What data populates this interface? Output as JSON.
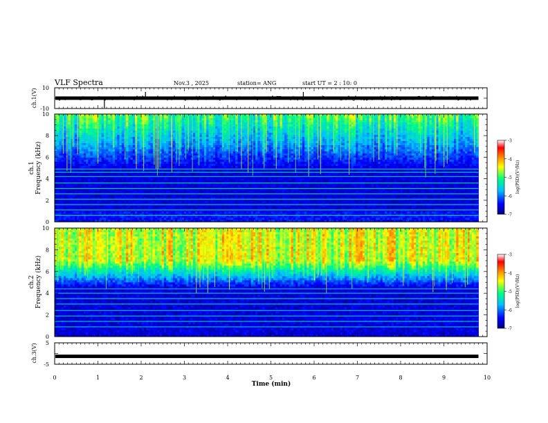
{
  "header": {
    "title": "VLF Spectra",
    "date": "Nov.3 , 2025",
    "station": "station= ANG",
    "start": "start UT = 2 : 10: 0"
  },
  "colors": {
    "spectrogram_background": "#0a1a8c",
    "trace": "#000000",
    "colorbar_stops": [
      "#000080",
      "#0000ff",
      "#00bfff",
      "#00ff80",
      "#ffff00",
      "#ff8000",
      "#ff0000",
      "#ffffff"
    ]
  },
  "chart_data": [
    {
      "type": "line",
      "name": "ch1-waveform",
      "ylabel": "ch.1(V)",
      "ylim": [
        -10,
        10
      ],
      "y_tick_labels": [
        "10",
        "-10"
      ],
      "xlim": [
        0,
        10
      ],
      "trace_end_min": 9.8,
      "baseline_v": 0,
      "spikes": [
        {
          "x": 1.15,
          "y": -9.5
        },
        {
          "x": 2.1,
          "y": 6
        },
        {
          "x": 5.75,
          "y": 6
        },
        {
          "x": 7.8,
          "y": 2
        }
      ]
    },
    {
      "type": "heatmap",
      "name": "ch1-spectrogram",
      "ylabel_line1": "ch.1",
      "ylabel_line2": "Frequency (kHz)",
      "ylim": [
        0,
        10
      ],
      "y_tick_labels": [
        "0",
        "2",
        "4",
        "6",
        "8",
        "10"
      ],
      "xlim": [
        0,
        10
      ],
      "data_end_min": 9.8,
      "colorbar": {
        "label": "log(PSD)(V²/Hz)",
        "range": [
          -7,
          -3
        ],
        "tick_labels": [
          "-3",
          "-4",
          "-5",
          "-6",
          "-7"
        ]
      },
      "note": "broadband emission strongest above ~5 kHz; horizontal interference lines near 1-5 kHz"
    },
    {
      "type": "heatmap",
      "name": "ch2-spectrogram",
      "ylabel_line1": "ch.2",
      "ylabel_line2": "Frequency (kHz)",
      "ylim": [
        0,
        10
      ],
      "y_tick_labels": [
        "0",
        "2",
        "4",
        "6",
        "8",
        "10"
      ],
      "xlim": [
        0,
        10
      ],
      "data_end_min": 9.8,
      "colorbar": {
        "label": "log(PSD)(V²/Hz)",
        "range": [
          -7,
          -3
        ],
        "tick_labels": [
          "-3",
          "-4",
          "-5",
          "-6",
          "-7"
        ]
      },
      "note": "intense emission (yellow/red) between ~6 and 10 kHz"
    },
    {
      "type": "line",
      "name": "ch3-waveform",
      "ylabel": "ch.3(V)",
      "ylim": [
        -5,
        5
      ],
      "y_tick_labels": [
        "5",
        "-5"
      ],
      "xlim": [
        0,
        10
      ],
      "trace_end_min": 9.8,
      "baseline_v": -1.3
    }
  ],
  "x_axis": {
    "label": "Time (min)",
    "tick_labels": [
      "0",
      "1",
      "2",
      "3",
      "4",
      "5",
      "6",
      "7",
      "8",
      "9",
      "10"
    ]
  }
}
